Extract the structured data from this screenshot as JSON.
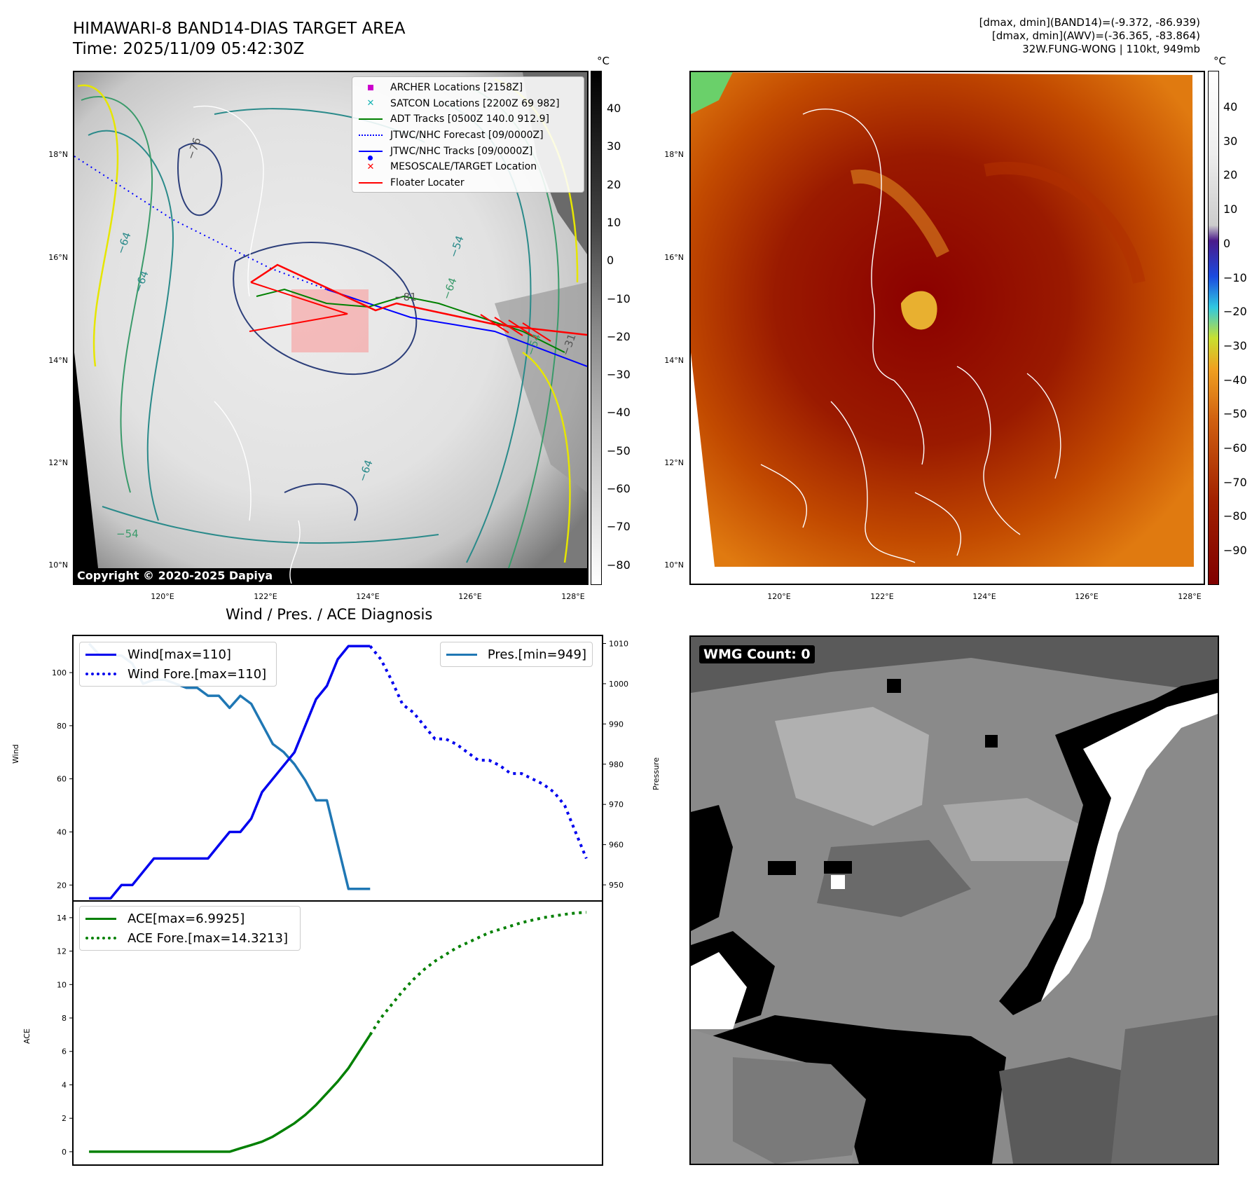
{
  "header": {
    "title": "HIMAWARI-8 BAND14-DIAS TARGET AREA",
    "time": "Time: 2025/11/09 05:42:30Z",
    "info_line1": "[dmax, dmin](BAND14)=(-9.372, -86.939)",
    "info_line2": "[dmax, dmin](AWV)=(-36.365, -83.864)",
    "info_line3": "32W.FUNG-WONG | 110kt, 949mb"
  },
  "map_axes": {
    "lat_labels": [
      "18°N",
      "16°N",
      "14°N",
      "12°N",
      "10°N"
    ],
    "lon_labels": [
      "120°E",
      "122°E",
      "124°E",
      "126°E",
      "128°E"
    ]
  },
  "gray_colorbar": {
    "unit": "°C",
    "ticks": [
      "40",
      "30",
      "20",
      "10",
      "0",
      "−10",
      "−20",
      "−30",
      "−40",
      "−50",
      "−60",
      "−70",
      "−80"
    ]
  },
  "color_colorbar": {
    "unit": "°C",
    "ticks": [
      "40",
      "30",
      "20",
      "10",
      "0",
      "−10",
      "−20",
      "−30",
      "−40",
      "−50",
      "−60",
      "−70",
      "−80",
      "−90"
    ]
  },
  "map_legend": {
    "items": [
      {
        "label": "ARCHER Locations [2158Z]",
        "color": "#cc00cc",
        "symbol": "square"
      },
      {
        "label": "SATCON Locations [2200Z 69 982]",
        "color": "#17b3b3",
        "symbol": "x"
      },
      {
        "label": "ADT Tracks [0500Z 140.0 912.9]",
        "color": "#008000",
        "symbol": "line"
      },
      {
        "label": "JTWC/NHC Forecast [09/0000Z]",
        "color": "#0000ff",
        "symbol": "dotted"
      },
      {
        "label": "JTWC/NHC Tracks [09/0000Z]",
        "color": "#0000ff",
        "symbol": "line-dot"
      },
      {
        "label": "MESOSCALE/TARGET Location",
        "color": "#ff0000",
        "symbol": "x"
      },
      {
        "label": "Floater Locater",
        "color": "#ff0000",
        "symbol": "line"
      }
    ]
  },
  "contour_labels": [
    "−76",
    "−64",
    "−64",
    "−54",
    "−64",
    "−54",
    "−54",
    "−64",
    "−81",
    "−31"
  ],
  "copyright": "Copyright © 2020-2025 Dapiya",
  "wmg_label": "WMG Count: 0",
  "diagnosis": {
    "title": "Wind / Pres. / ACE Diagnosis",
    "wind_ylabel": "Wind",
    "pres_ylabel": "Pressure",
    "ace_ylabel": "ACE",
    "wind_ticks": [
      "100",
      "80",
      "60",
      "40",
      "20"
    ],
    "pres_ticks": [
      "1010",
      "1000",
      "990",
      "980",
      "970",
      "960",
      "950"
    ],
    "ace_ticks": [
      "14",
      "12",
      "10",
      "8",
      "6",
      "4",
      "2",
      "0"
    ],
    "legend_wind": "Wind[max=110]",
    "legend_wind_fore": "Wind Fore.[max=110]",
    "legend_pres": "Pres.[min=949]",
    "legend_ace": "ACE[max=6.9925]",
    "legend_ace_fore": "ACE Fore.[max=14.3213]",
    "colors": {
      "wind": "#0000ee",
      "pres": "#1f77b4",
      "ace": "#008000"
    }
  },
  "chart_data": [
    {
      "type": "line",
      "title": "Wind / Pres. / ACE Diagnosis",
      "ylabel": "Wind",
      "ylim": [
        14,
        114
      ],
      "x": [
        0,
        1,
        2,
        3,
        4,
        5,
        6,
        7,
        8,
        9,
        10,
        11,
        12,
        13,
        14,
        15,
        16,
        17,
        18,
        19,
        20,
        21,
        22,
        23,
        24,
        25,
        26
      ],
      "series": [
        {
          "name": "Wind[max=110]",
          "axis": "left",
          "style": "solid",
          "x": [
            0,
            1,
            2,
            3,
            4,
            5,
            6,
            7,
            8,
            9,
            10,
            11,
            12,
            13,
            14,
            15,
            16,
            17,
            18,
            19,
            20,
            21,
            22,
            23,
            24,
            25,
            26
          ],
          "values": [
            15,
            15,
            15,
            20,
            20,
            25,
            30,
            30,
            30,
            30,
            30,
            30,
            35,
            40,
            40,
            45,
            55,
            60,
            65,
            70,
            80,
            90,
            95,
            105,
            110,
            110,
            110
          ]
        },
        {
          "name": "Wind Fore.[max=110]",
          "axis": "left",
          "style": "dotted",
          "x": [
            26,
            27,
            28,
            29,
            30,
            31,
            32,
            33,
            34,
            35,
            36,
            37,
            38,
            39,
            40,
            41,
            42,
            43,
            44,
            45,
            46
          ],
          "values": [
            110,
            105,
            97,
            88,
            85,
            80,
            75,
            75,
            73,
            70,
            67,
            67,
            65,
            62,
            62,
            60,
            58,
            55,
            50,
            40,
            30
          ]
        },
        {
          "name": "Pres.[min=949]",
          "axis": "right",
          "style": "solid",
          "ylim": [
            946,
            1012
          ],
          "x": [
            0,
            1,
            2,
            3,
            4,
            5,
            6,
            7,
            8,
            9,
            10,
            11,
            12,
            13,
            14,
            15,
            16,
            17,
            18,
            19,
            20,
            21,
            22,
            23,
            24,
            25,
            26
          ],
          "values": [
            1010,
            1007,
            1007,
            1007,
            1005,
            1000,
            1001,
            1001,
            1000,
            999,
            999,
            997,
            997,
            994,
            997,
            995,
            990,
            985,
            983,
            980,
            976,
            971,
            971,
            960,
            949,
            949,
            949
          ]
        }
      ]
    },
    {
      "type": "line",
      "ylabel": "ACE",
      "ylim": [
        -0.8,
        15
      ],
      "series": [
        {
          "name": "ACE[max=6.9925]",
          "style": "solid",
          "x": [
            0,
            2,
            4,
            6,
            8,
            10,
            12,
            13,
            14,
            15,
            16,
            17,
            18,
            19,
            20,
            21,
            22,
            23,
            24,
            25,
            26
          ],
          "values": [
            0,
            0,
            0,
            0,
            0,
            0,
            0,
            0,
            0.2,
            0.4,
            0.6,
            0.9,
            1.3,
            1.7,
            2.2,
            2.8,
            3.5,
            4.2,
            5.0,
            6.0,
            6.9925
          ]
        },
        {
          "name": "ACE Fore.[max=14.3213]",
          "style": "dotted",
          "x": [
            26,
            27,
            28,
            29,
            30,
            31,
            32,
            33,
            34,
            35,
            36,
            37,
            38,
            39,
            40,
            41,
            42,
            43,
            44,
            45,
            46
          ],
          "values": [
            6.9925,
            8.0,
            8.8,
            9.6,
            10.3,
            10.9,
            11.4,
            11.8,
            12.2,
            12.5,
            12.8,
            13.1,
            13.3,
            13.5,
            13.7,
            13.85,
            14.0,
            14.1,
            14.2,
            14.28,
            14.3213
          ]
        }
      ]
    }
  ]
}
